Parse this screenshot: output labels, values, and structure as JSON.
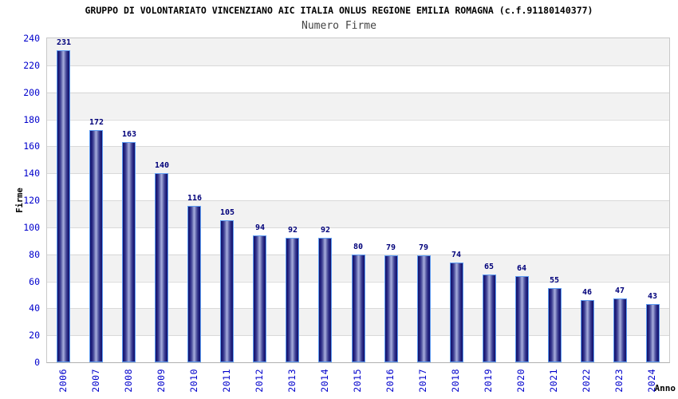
{
  "chart_data": {
    "type": "bar",
    "title": "GRUPPO DI VOLONTARIATO VINCENZIANO AIC ITALIA ONLUS REGIONE EMILIA ROMAGNA (c.f.91180140377)",
    "subtitle": "Numero Firme",
    "xlabel": "Anno",
    "ylabel": "Firme",
    "categories": [
      "2006",
      "2007",
      "2008",
      "2009",
      "2010",
      "2011",
      "2012",
      "2013",
      "2014",
      "2015",
      "2016",
      "2017",
      "2018",
      "2019",
      "2020",
      "2021",
      "2022",
      "2023",
      "2024"
    ],
    "values": [
      231,
      172,
      163,
      140,
      116,
      105,
      94,
      92,
      92,
      80,
      79,
      79,
      74,
      65,
      64,
      55,
      46,
      47,
      43
    ],
    "ylim": [
      0,
      240
    ],
    "yticks": [
      0,
      20,
      40,
      60,
      80,
      100,
      120,
      140,
      160,
      180,
      200,
      220,
      240
    ],
    "grid": "horizontal-gridlines-with-alternating-bands",
    "legend": "none",
    "colors": {
      "bar_dark": "#13136b",
      "bar_mid": "#5d62a8",
      "bar_light": "#a6abdc",
      "bar_border": "#5e9cf2",
      "tick_text": "#0000cc",
      "value_label_text": "#00007a",
      "title_text": "#000000",
      "subtitle_text": "#444444",
      "band_gray": "#f2f2f2",
      "gridline": "#d9d9d9",
      "plot_border": "#c9c9c9"
    }
  }
}
